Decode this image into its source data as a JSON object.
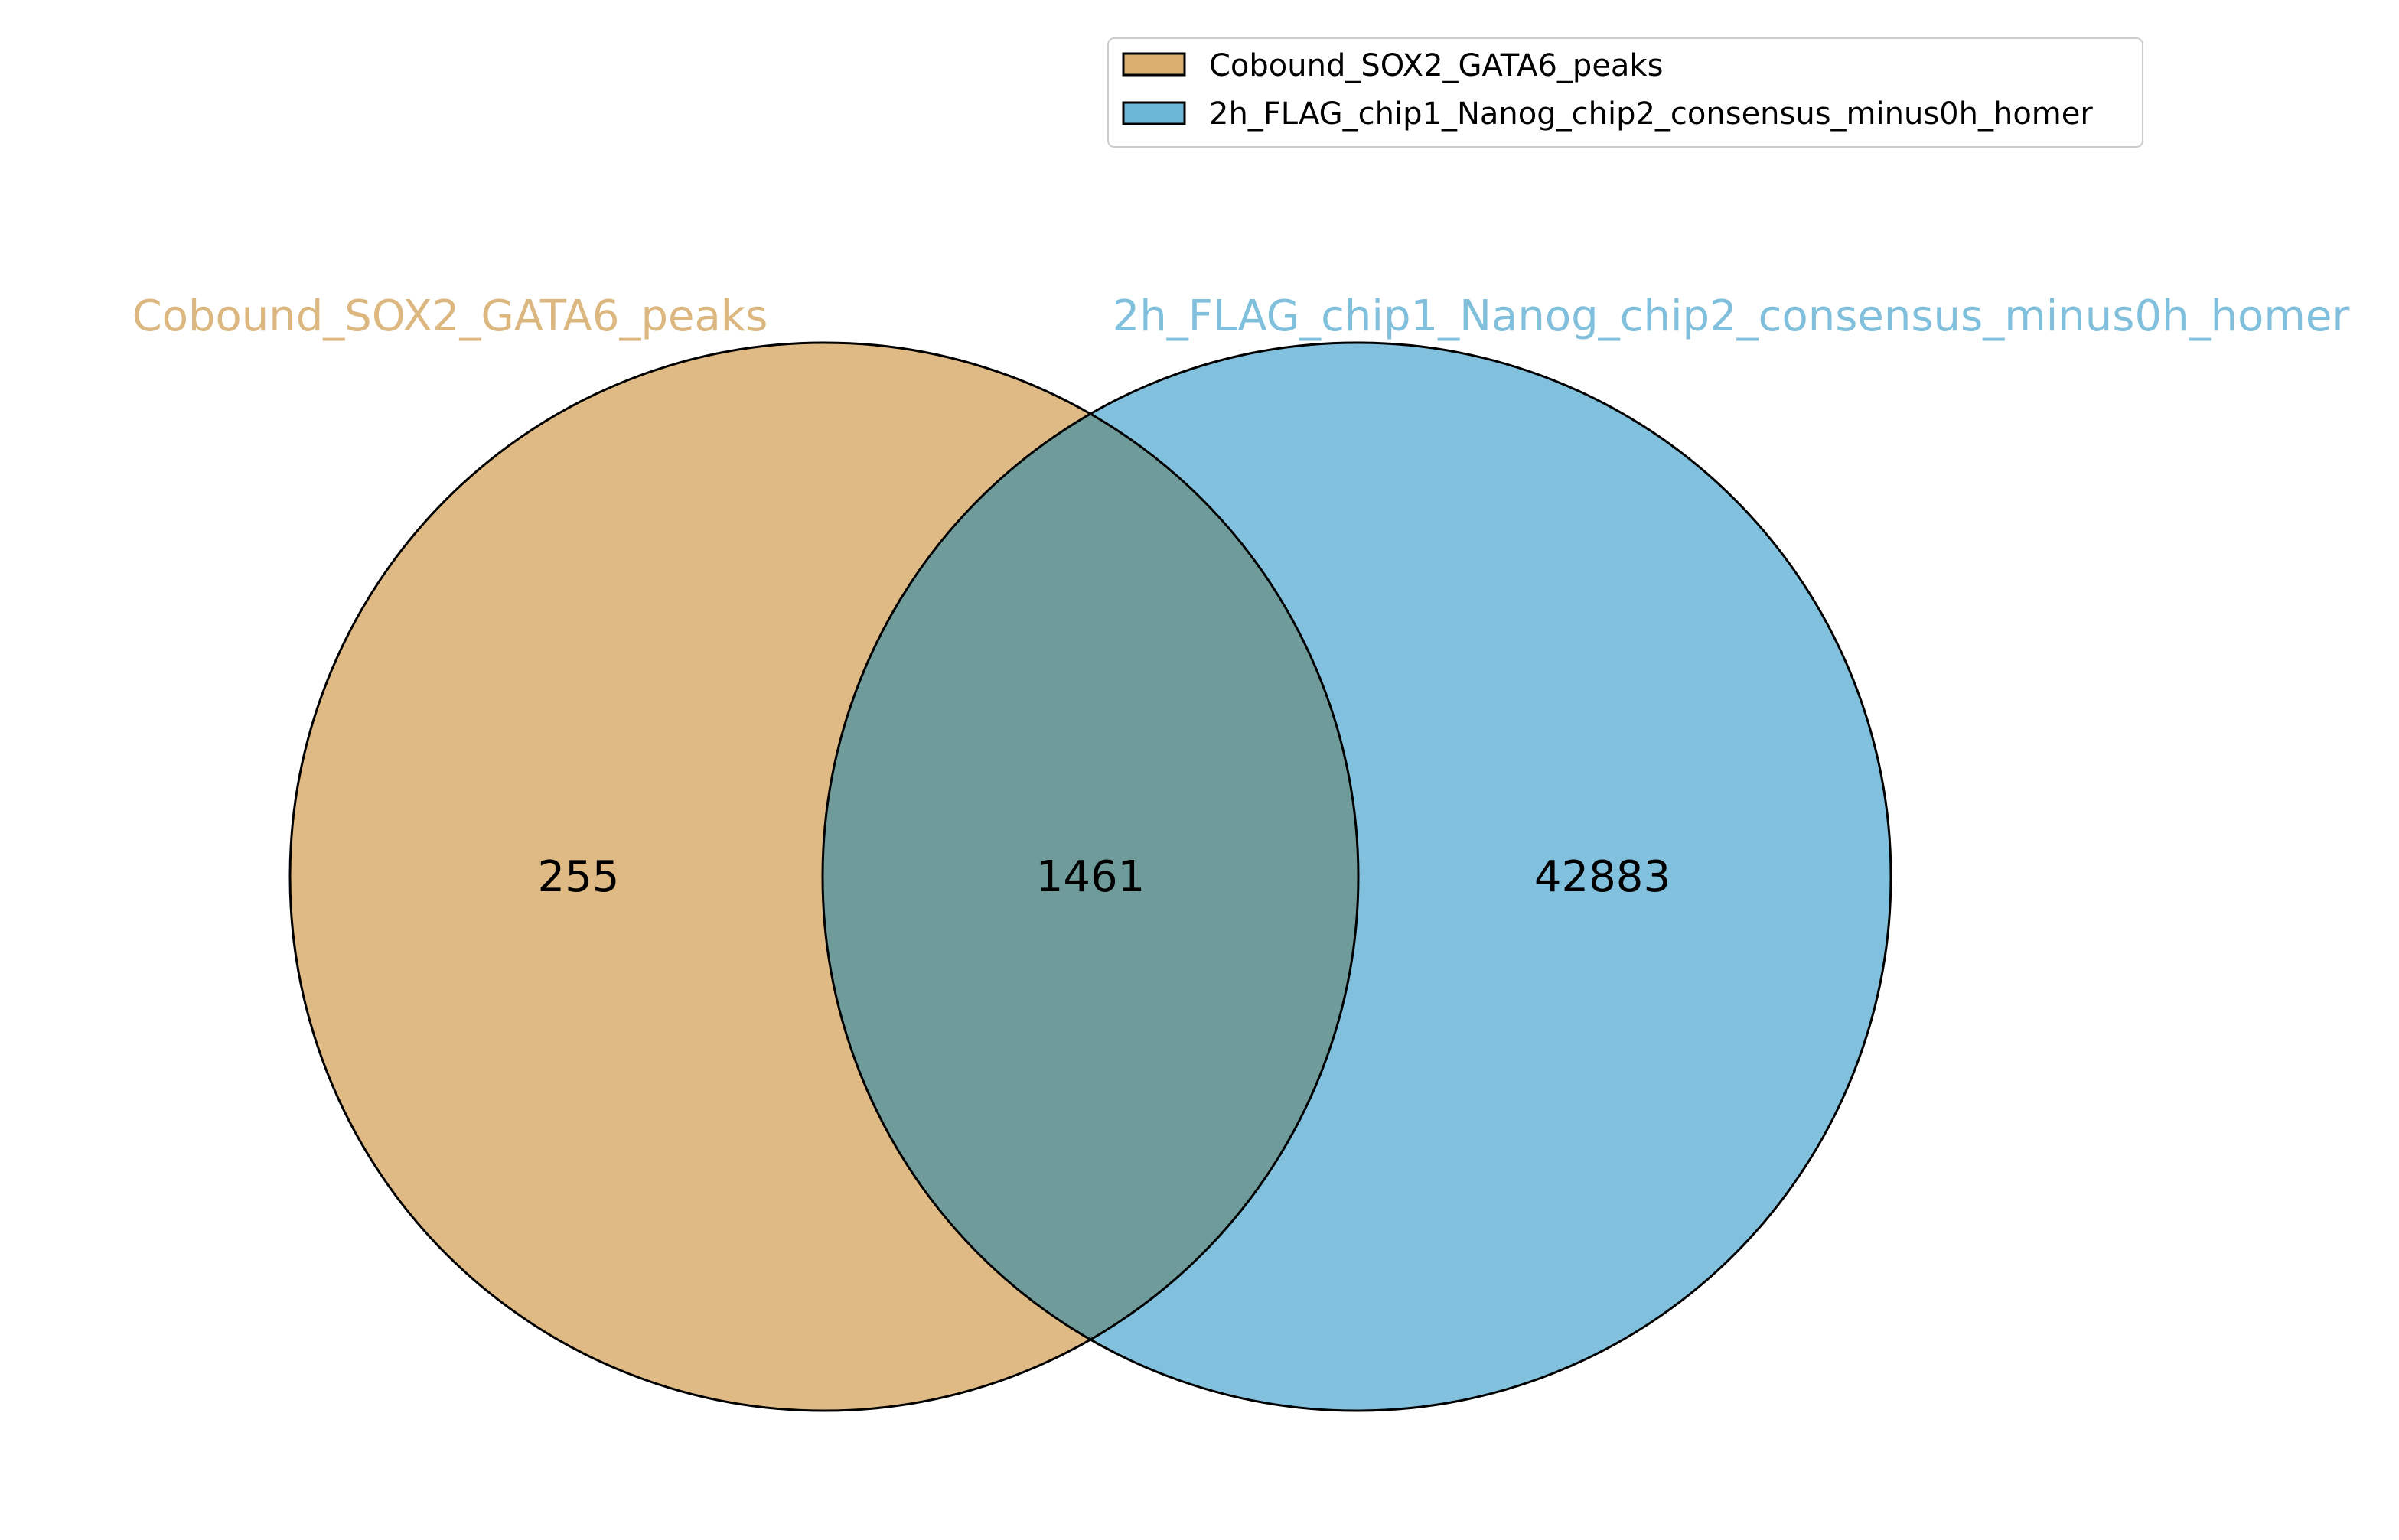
{
  "colors": {
    "set_a": "#d9ae6e",
    "set_b": "#6cb6d8",
    "set_a_label": "#dcb77f",
    "set_b_label": "#80c0dc",
    "outline": "#000000"
  },
  "legend": {
    "position": "top-right",
    "entries": [
      {
        "label": "Cobound_SOX2_GATA6_peaks"
      },
      {
        "label": "2h_FLAG_chip1_Nanog_chip2_consensus_minus0h_homer"
      }
    ]
  },
  "chart_data": {
    "type": "venn",
    "sets": [
      {
        "name": "Cobound_SOX2_GATA6_peaks"
      },
      {
        "name": "2h_FLAG_chip1_Nanog_chip2_consensus_minus0h_homer"
      }
    ],
    "regions": {
      "only_a": "255",
      "overlap": "1461",
      "only_b": "42883"
    }
  }
}
